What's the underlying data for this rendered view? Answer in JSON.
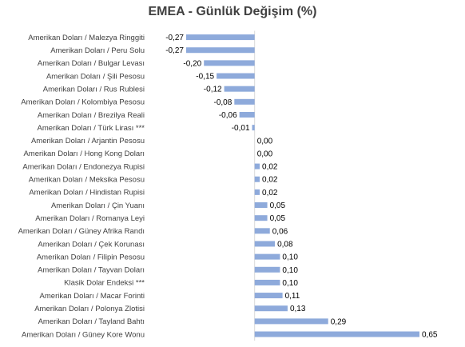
{
  "chart_data": {
    "type": "bar",
    "orientation": "horizontal",
    "title": "EMEA - Günlük Değişim (%)",
    "categories": [
      "Amerikan Doları / Malezya Ringgiti",
      "Amerikan Doları / Peru Solu",
      "Amerikan Doları / Bulgar Levası",
      "Amerikan Doları / Şili Pesosu",
      "Amerikan Doları / Rus Rublesi",
      "Amerikan Doları / Kolombiya Pesosu",
      "Amerikan Doları / Brezilya Reali",
      "Amerikan Doları / Türk Lirası ***",
      "Amerikan Doları / Arjantin Pesosu",
      "Amerikan Doları / Hong Kong Doları",
      "Amerikan Doları / Endonezya Rupisi",
      "Amerikan Doları / Meksika Pesosu",
      "Amerikan Doları / Hindistan Rupisi",
      "Amerikan Doları / Çin Yuanı",
      "Amerikan Doları / Romanya Leyi",
      "Amerikan Doları / Güney Afrika Randı",
      "Amerikan Doları / Çek Korunası",
      "Amerikan Doları / Filipin Pesosu",
      "Amerikan Doları / Tayvan Doları",
      "Klasik Dolar Endeksi ***",
      "Amerikan Doları / Macar Forinti",
      "Amerikan Doları / Polonya Zlotisi",
      "Amerikan Doları / Tayland Bahtı",
      "Amerikan Doları / Güney Kore Wonu"
    ],
    "values": [
      -0.27,
      -0.27,
      -0.2,
      -0.15,
      -0.12,
      -0.08,
      -0.06,
      -0.01,
      0.0,
      0.0,
      0.02,
      0.02,
      0.02,
      0.05,
      0.05,
      0.06,
      0.08,
      0.1,
      0.1,
      0.1,
      0.11,
      0.13,
      0.29,
      0.65
    ],
    "value_labels": [
      "-0,27",
      "-0,27",
      "-0,20",
      "-0,15",
      "-0,12",
      "-0,08",
      "-0,06",
      "-0,01",
      "0,00",
      "0,00",
      "0,02",
      "0,02",
      "0,02",
      "0,05",
      "0,05",
      "0,06",
      "0,08",
      "0,10",
      "0,10",
      "0,10",
      "0,11",
      "0,13",
      "0,29",
      "0,65"
    ],
    "xlim": [
      -0.27,
      0.65
    ],
    "bar_color": "#8EAADB",
    "grid": false,
    "legend": "none"
  }
}
